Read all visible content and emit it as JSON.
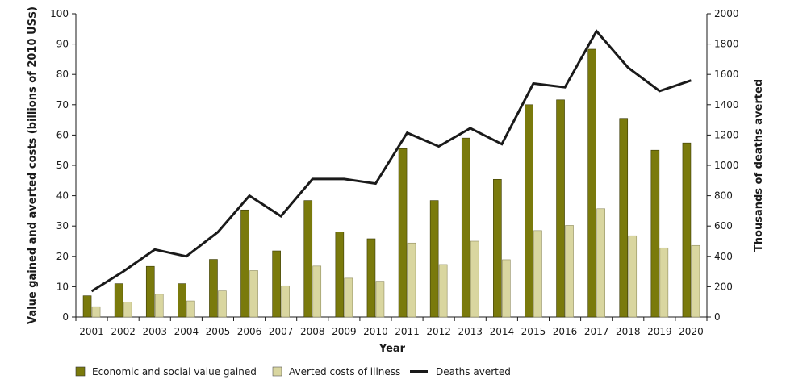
{
  "chart_data": {
    "type": "bar",
    "xlabel": "Year",
    "ylabel": "Value gained and averted costs (billions of 2010 US$)",
    "y2label": "Thousands of deaths averted",
    "ylim": [
      0,
      100
    ],
    "y2lim": [
      0,
      2000
    ],
    "yticks": [
      0,
      10,
      20,
      30,
      40,
      50,
      60,
      70,
      80,
      90,
      100
    ],
    "y2ticks": [
      0,
      200,
      400,
      600,
      800,
      1000,
      1200,
      1400,
      1600,
      1800,
      2000
    ],
    "categories": [
      "2001",
      "2002",
      "2003",
      "2004",
      "2005",
      "2006",
      "2007",
      "2008",
      "2009",
      "2010",
      "2011",
      "2012",
      "2013",
      "2014",
      "2015",
      "2016",
      "2017",
      "2018",
      "2019",
      "2020"
    ],
    "series": [
      {
        "name": "Economic and social value gained",
        "type": "bar",
        "axis": "left",
        "color": "#7a7a0c",
        "values": [
          7,
          11,
          16.7,
          11,
          19,
          35.3,
          21.8,
          38.4,
          28.1,
          25.8,
          55.5,
          38.4,
          59,
          45.4,
          70,
          71.6,
          88.3,
          65.5,
          55,
          57.4
        ]
      },
      {
        "name": "Averted costs of illness",
        "type": "bar",
        "axis": "left",
        "color": "#d9d6a0",
        "values": [
          3.4,
          4.9,
          7.5,
          5.3,
          8.6,
          15.3,
          10.3,
          16.8,
          12.8,
          11.8,
          24.4,
          17.3,
          25,
          18.9,
          28.5,
          30.2,
          35.7,
          26.8,
          22.8,
          23.6
        ]
      },
      {
        "name": "Deaths averted",
        "type": "line",
        "axis": "right",
        "color": "#1a1a1a",
        "values": [
          170,
          300,
          445,
          400,
          560,
          800,
          665,
          910,
          910,
          880,
          1215,
          1125,
          1245,
          1140,
          1540,
          1515,
          1885,
          1645,
          1490,
          1560
        ]
      }
    ],
    "legend_position": "bottom",
    "grid": false
  }
}
